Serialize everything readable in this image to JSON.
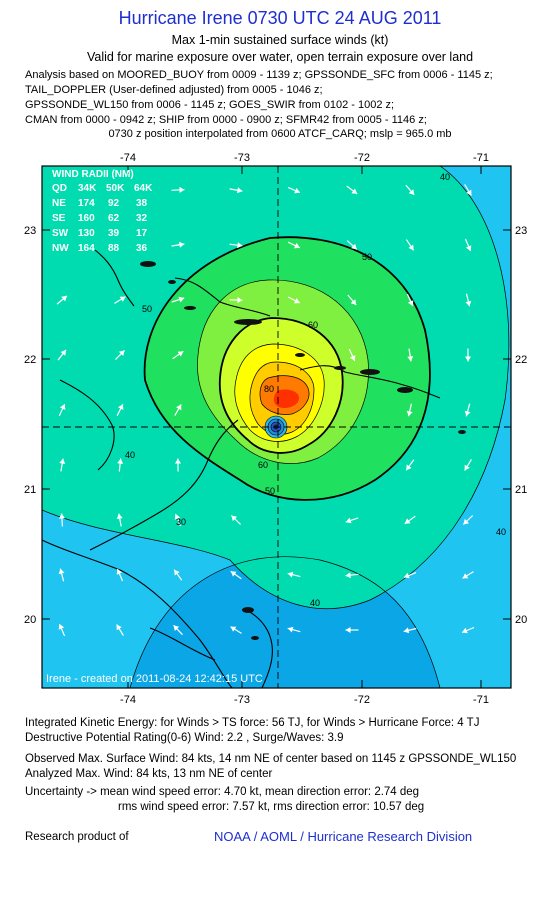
{
  "header": {
    "title": "Hurricane Irene 0730 UTC 24 AUG 2011",
    "subtitle": "Max 1-min sustained surface winds (kt)",
    "validity": "Valid for marine exposure over water, open terrain exposure over land",
    "analysis_lines": [
      "Analysis based on MOORED_BUOY from 0009 - 1139 z; GPSSONDE_SFC from 0006 - 1145 z;",
      "TAIL_DOPPLER (User-defined adjusted) from 0005 - 1046 z;",
      "GPSSONDE_WL150 from 0006 - 1145 z; GOES_SWIR from 0102 - 1002 z;",
      "CMAN from 0000 - 0942 z; SHIP from 0000 - 0900 z; SFMR42 from 0005 - 1146 z;"
    ],
    "position_note": "0730 z position interpolated from 0600 ATCF_CARQ; mslp = 965.0 mb"
  },
  "map": {
    "lon_labels": [
      "-74",
      "-73",
      "-72",
      "-71"
    ],
    "lat_labels": [
      "23",
      "22",
      "21",
      "20"
    ],
    "contour_labels": [
      "30",
      "40",
      "40",
      "40",
      "40",
      "50",
      "50",
      "50",
      "60",
      "60",
      "80"
    ],
    "credit": "Irene - created on 2011-08-24 12:42:15 UTC",
    "center_lon": -72.6,
    "center_lat": 21.45,
    "colors": {
      "lt30": "#0aa6e6",
      "c30": "#1fc4f0",
      "c40": "#00dcb0",
      "c50": "#20e060",
      "c60": "#7ff040",
      "c64": "#cfff2a",
      "c70": "#ffff00",
      "c75": "#ffcc00",
      "c80": "#ff7a00",
      "c90": "#ff3000",
      "land_line": "#000000",
      "radii_text": "#ffffff"
    },
    "wind_radii": {
      "title": "WIND RADII (NM)",
      "header": [
        "QD",
        "34K",
        "50K",
        "64K"
      ],
      "rows": [
        [
          "NE",
          "174",
          "92",
          "38"
        ],
        [
          "SE",
          "160",
          "62",
          "32"
        ],
        [
          "SW",
          "130",
          "39",
          "17"
        ],
        [
          "NW",
          "164",
          "88",
          "36"
        ]
      ]
    }
  },
  "footer": {
    "ike": "Integrated Kinetic Energy:  for Winds > TS force: 56 TJ,  for Winds > Hurricane Force: 4 TJ",
    "dpr": "Destructive Potential Rating(0-6)   Wind: 2.2 , Surge/Waves: 3.9",
    "observed": "Observed Max. Surface Wind: 84 kts, 14 nm NE of center based on 1145 z GPSSONDE_WL150",
    "analyzed": "Analyzed Max. Wind: 84 kts, 13 nm NE of center",
    "uncertainty1": "Uncertainty -> mean wind speed error: 4.70 kt,   mean direction error: 2.74 deg",
    "uncertainty2": "rms wind speed error: 7.57 kt,   rms direction error: 10.57 deg",
    "research": "Research product of",
    "org": "NOAA / AOML / Hurricane Research Division"
  }
}
